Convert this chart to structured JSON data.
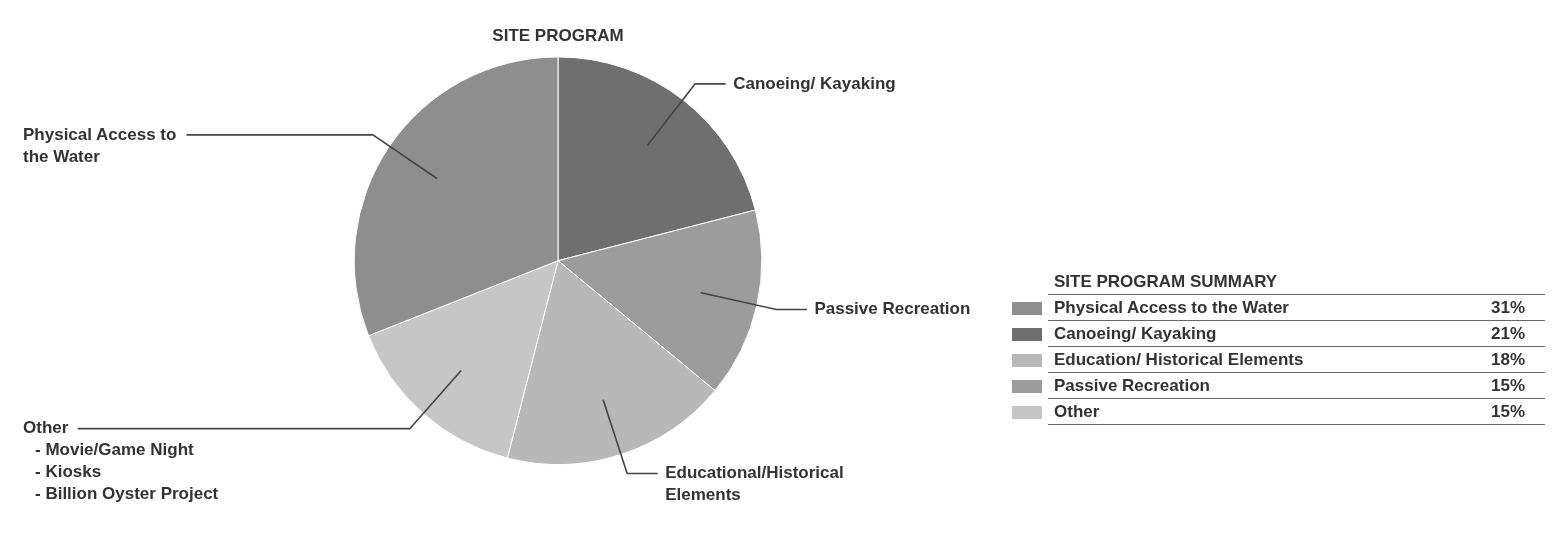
{
  "chart_data": [
    {
      "type": "pie",
      "title": "SITE PROGRAM",
      "categories": [
        "Canoeing/ Kayaking",
        "Passive Recreation",
        "Educational/Historical Elements",
        "Other",
        "Physical Access to the Water"
      ],
      "values": [
        21,
        15,
        18,
        15,
        31
      ],
      "colors": [
        "#6f6f6f",
        "#9c9c9c",
        "#b8b8b8",
        "#c6c6c6",
        "#8e8e8e"
      ],
      "annotations": [
        "- Movie/Game Night",
        "- Kiosks",
        "- Billion Oyster Project"
      ]
    },
    {
      "type": "other",
      "title": "SITE PROGRAM SUMMARY",
      "categories": [
        "Physical Access to the Water",
        "Canoeing/ Kayaking",
        "Education/ Historical Elements",
        "Passive Recreation",
        "Other"
      ],
      "colors": [
        "#8e8e8e",
        "#6f6f6f",
        "#b8b8b8",
        "#9c9c9c",
        "#c6c6c6"
      ],
      "value_labels": [
        "31%",
        "21%",
        "18%",
        "15%",
        "15%"
      ]
    }
  ]
}
